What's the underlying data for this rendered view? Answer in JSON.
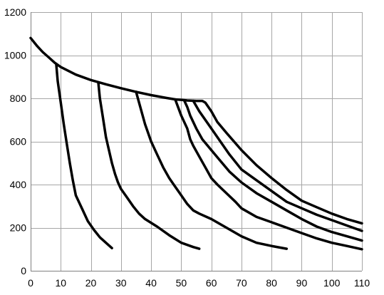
{
  "chart_data": {
    "type": "line",
    "title": "",
    "xlabel": "",
    "ylabel": "",
    "xlim": [
      0,
      110
    ],
    "ylim": [
      0,
      1200
    ],
    "xticks": [
      0,
      10,
      20,
      30,
      40,
      50,
      60,
      70,
      80,
      90,
      100,
      110
    ],
    "yticks": [
      0,
      200,
      400,
      600,
      800,
      1000,
      1200
    ],
    "grid": true,
    "legend": "none",
    "line_color": "#000000",
    "series": [
      {
        "points": [
          [
            0,
            1080
          ],
          [
            2,
            1045
          ],
          [
            4,
            1015
          ],
          [
            6,
            990
          ],
          [
            8,
            965
          ],
          [
            10,
            945
          ],
          [
            15,
            910
          ],
          [
            20,
            885
          ],
          [
            25,
            865
          ],
          [
            30,
            847
          ],
          [
            35,
            830
          ],
          [
            40,
            815
          ],
          [
            45,
            802
          ],
          [
            48,
            795
          ],
          [
            50,
            793
          ],
          [
            52,
            790
          ],
          [
            55,
            788
          ],
          [
            57,
            788
          ],
          [
            58,
            780
          ],
          [
            60,
            740
          ],
          [
            62,
            690
          ],
          [
            65,
            640
          ],
          [
            70,
            560
          ],
          [
            75,
            490
          ],
          [
            80,
            430
          ],
          [
            85,
            375
          ],
          [
            90,
            325
          ],
          [
            95,
            295
          ],
          [
            100,
            265
          ],
          [
            105,
            240
          ],
          [
            110,
            220
          ]
        ]
      },
      {
        "points": [
          [
            8.5,
            960
          ],
          [
            9,
            880
          ],
          [
            10,
            780
          ],
          [
            11,
            680
          ],
          [
            12,
            590
          ],
          [
            13,
            500
          ],
          [
            14,
            420
          ],
          [
            15,
            350
          ],
          [
            17,
            290
          ],
          [
            19,
            230
          ],
          [
            21,
            190
          ],
          [
            23,
            155
          ],
          [
            25,
            130
          ],
          [
            27,
            105
          ]
        ]
      },
      {
        "points": [
          [
            22.5,
            870
          ],
          [
            23,
            800
          ],
          [
            24,
            710
          ],
          [
            25,
            620
          ],
          [
            26,
            560
          ],
          [
            27,
            500
          ],
          [
            28,
            450
          ],
          [
            29,
            410
          ],
          [
            30,
            380
          ],
          [
            32,
            340
          ],
          [
            34,
            300
          ],
          [
            36,
            265
          ],
          [
            38,
            240
          ],
          [
            42,
            205
          ],
          [
            46,
            165
          ],
          [
            50,
            130
          ],
          [
            54,
            110
          ],
          [
            56,
            102
          ]
        ]
      },
      {
        "points": [
          [
            35,
            830
          ],
          [
            36,
            780
          ],
          [
            37,
            730
          ],
          [
            38,
            680
          ],
          [
            40,
            600
          ],
          [
            42,
            540
          ],
          [
            44,
            480
          ],
          [
            46,
            430
          ],
          [
            48,
            390
          ],
          [
            50,
            350
          ],
          [
            52,
            310
          ],
          [
            54,
            280
          ],
          [
            56,
            265
          ],
          [
            60,
            240
          ],
          [
            65,
            200
          ],
          [
            70,
            160
          ],
          [
            75,
            130
          ],
          [
            80,
            115
          ],
          [
            85,
            102
          ]
        ]
      },
      {
        "points": [
          [
            48,
            795
          ],
          [
            50,
            720
          ],
          [
            52,
            660
          ],
          [
            53,
            610
          ],
          [
            54,
            580
          ],
          [
            56,
            530
          ],
          [
            58,
            480
          ],
          [
            60,
            430
          ],
          [
            62,
            400
          ],
          [
            65,
            360
          ],
          [
            68,
            320
          ],
          [
            70,
            290
          ],
          [
            75,
            250
          ],
          [
            80,
            225
          ],
          [
            85,
            200
          ],
          [
            90,
            175
          ],
          [
            95,
            150
          ],
          [
            100,
            130
          ],
          [
            105,
            115
          ],
          [
            110,
            100
          ]
        ]
      },
      {
        "points": [
          [
            51,
            790
          ],
          [
            52,
            760
          ],
          [
            53,
            720
          ],
          [
            55,
            660
          ],
          [
            57,
            610
          ],
          [
            60,
            560
          ],
          [
            63,
            510
          ],
          [
            66,
            460
          ],
          [
            70,
            410
          ],
          [
            75,
            360
          ],
          [
            80,
            320
          ],
          [
            85,
            280
          ],
          [
            90,
            240
          ],
          [
            95,
            205
          ],
          [
            100,
            180
          ],
          [
            105,
            160
          ],
          [
            110,
            140
          ]
        ]
      },
      {
        "points": [
          [
            54,
            788
          ],
          [
            56,
            740
          ],
          [
            58,
            700
          ],
          [
            60,
            660
          ],
          [
            63,
            600
          ],
          [
            66,
            540
          ],
          [
            70,
            470
          ],
          [
            75,
            420
          ],
          [
            80,
            370
          ],
          [
            85,
            320
          ],
          [
            90,
            290
          ],
          [
            95,
            260
          ],
          [
            100,
            235
          ],
          [
            105,
            210
          ],
          [
            110,
            185
          ]
        ]
      }
    ]
  }
}
